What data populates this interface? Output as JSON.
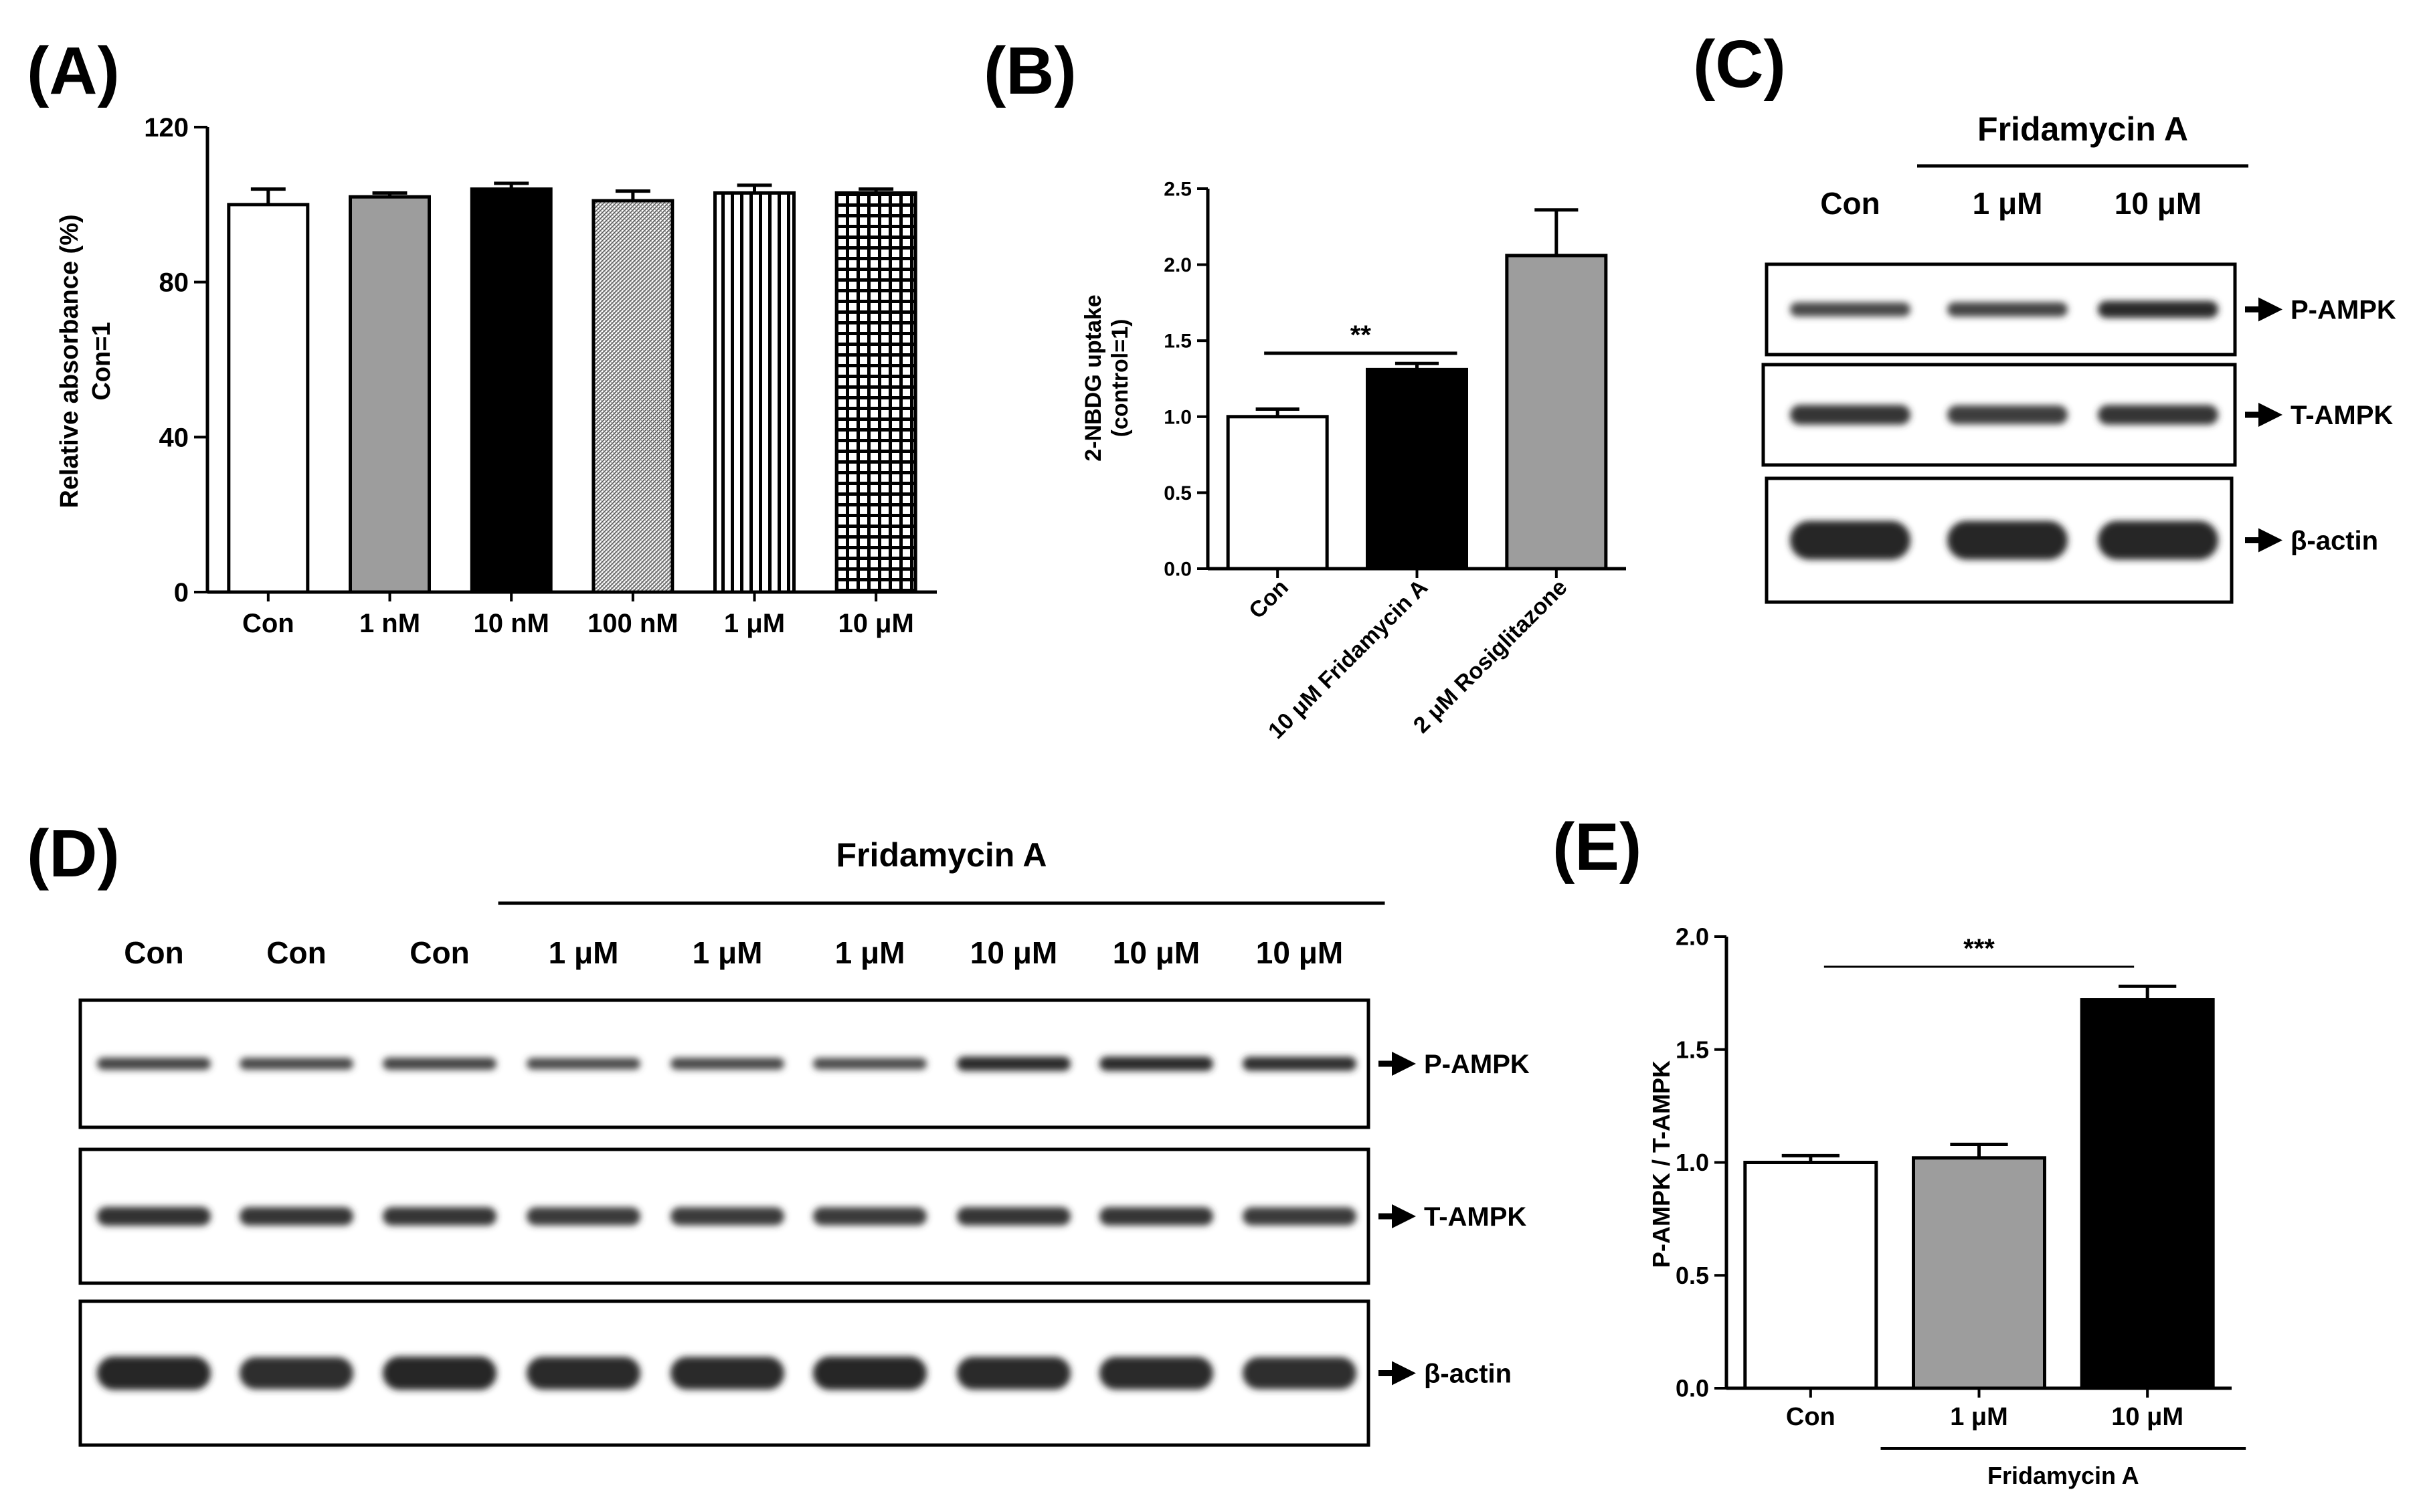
{
  "panels": {
    "A": {
      "letter": "(A)"
    },
    "B": {
      "letter": "(B)"
    },
    "C": {
      "letter": "(C)"
    },
    "D": {
      "letter": "(D)"
    },
    "E": {
      "letter": "(E)"
    }
  },
  "chart_data": [
    {
      "id": "A",
      "type": "bar",
      "categories": [
        "Con",
        "1 nM",
        "10 nM",
        "100 nM",
        "1 μM",
        "10 μM"
      ],
      "values": [
        100,
        102,
        104,
        101,
        103,
        103
      ],
      "errors": [
        4,
        1,
        1.5,
        2.5,
        2,
        1
      ],
      "fills": [
        "white",
        "gray",
        "black",
        "fine-hatch",
        "vertical-lines",
        "grid"
      ],
      "ylabel_lines": [
        "Relative absorbance (%)",
        "Con=1"
      ],
      "ylim": [
        0,
        120
      ],
      "yticks": [
        "0",
        "40",
        "80",
        "120"
      ]
    },
    {
      "id": "B",
      "type": "bar",
      "categories": [
        "Con",
        "10 μM Fridamycin A",
        "2 μM Rosiglitazone"
      ],
      "values": [
        1.0,
        1.31,
        2.06
      ],
      "errors": [
        0.05,
        0.04,
        0.3
      ],
      "fills": [
        "white",
        "black",
        "gray"
      ],
      "ylabel_lines": [
        "2-NBDG uptake",
        "(control=1)"
      ],
      "ylim": [
        0,
        2.5
      ],
      "yticks": [
        "0.0",
        "0.5",
        "1.0",
        "1.5",
        "2.0",
        "2.5"
      ],
      "significance": "**"
    },
    {
      "id": "E",
      "type": "bar",
      "categories": [
        "Con",
        "1 μM",
        "10 μM"
      ],
      "values": [
        1.0,
        1.02,
        1.72
      ],
      "errors": [
        0.03,
        0.06,
        0.06
      ],
      "fills": [
        "white",
        "gray",
        "black"
      ],
      "ylabel_lines": [
        "P-AMPK / T-AMPK"
      ],
      "ylim": [
        0,
        2.0
      ],
      "yticks": [
        "0.0",
        "0.5",
        "1.0",
        "1.5",
        "2.0"
      ],
      "significance": "***",
      "group_label": "Fridamycin A"
    }
  ],
  "blots": {
    "C": {
      "group_label": "Fridamycin A",
      "lanes": [
        "Con",
        "1 μM",
        "10 μM"
      ],
      "rows": [
        {
          "label": "P-AMPK",
          "intensity": [
            0.55,
            0.6,
            0.95
          ]
        },
        {
          "label": "T-AMPK",
          "intensity": [
            0.8,
            0.7,
            0.8
          ]
        },
        {
          "label": "β-actin",
          "intensity": [
            1,
            1,
            1
          ]
        }
      ]
    },
    "D": {
      "group_label": "Fridamycin A",
      "lanes": [
        "Con",
        "Con",
        "Con",
        "1 μM",
        "1 μM",
        "1 μM",
        "10 μM",
        "10 μM",
        "10 μM"
      ],
      "rows": [
        {
          "label": "P-AMPK",
          "intensity": [
            0.6,
            0.55,
            0.6,
            0.5,
            0.55,
            0.5,
            0.95,
            0.95,
            0.9
          ]
        },
        {
          "label": "T-AMPK",
          "intensity": [
            0.85,
            0.8,
            0.8,
            0.75,
            0.75,
            0.75,
            0.8,
            0.8,
            0.75
          ]
        },
        {
          "label": "β-actin",
          "intensity": [
            1,
            0.9,
            1,
            0.95,
            0.95,
            1,
            0.95,
            0.95,
            0.9
          ]
        }
      ]
    }
  }
}
